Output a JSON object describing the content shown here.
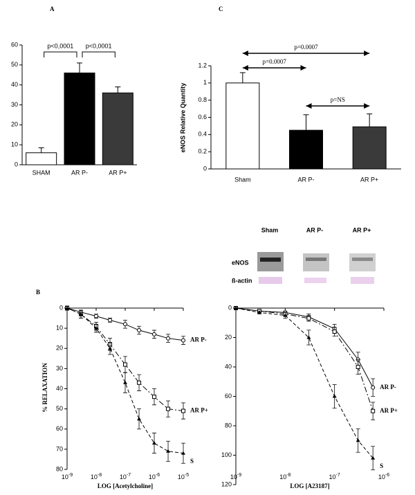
{
  "chart_data": [
    {
      "type": "bar",
      "panel": "A",
      "categories": [
        "SHAM",
        "AR P-",
        "AR P+"
      ],
      "values": [
        6,
        46,
        36
      ],
      "errors": [
        2.5,
        5,
        3
      ],
      "colors": [
        "#ffffff",
        "#000000",
        "#3a3a3a"
      ],
      "ylim": [
        0,
        60
      ],
      "yticks": [
        0,
        10,
        20,
        30,
        40,
        50,
        60
      ],
      "annotations": [
        {
          "text": "p<0,0001"
        },
        {
          "text": "p<0,0001"
        }
      ]
    },
    {
      "type": "bar",
      "panel": "C",
      "ylabel": "eNOS Relative Quantity",
      "categories": [
        "Sham",
        "AR P-",
        "AR P+"
      ],
      "values": [
        1.0,
        0.45,
        0.49
      ],
      "errors": [
        0.12,
        0.18,
        0.15
      ],
      "colors": [
        "#ffffff",
        "#000000",
        "#3a3a3a"
      ],
      "ylim": [
        0,
        1.2
      ],
      "yticks": [
        0,
        0.2,
        0.4,
        0.6,
        0.8,
        1,
        1.2
      ],
      "annotations": [
        {
          "text": "p=0.0007"
        },
        {
          "text": "p=0.0007"
        },
        {
          "text": "p=NS"
        }
      ]
    },
    {
      "type": "line",
      "panel": "B",
      "ylabel": "% RELAXATION",
      "xlabel": "LOG [Acetylcholine]",
      "log_x": true,
      "y_inverted": true,
      "x": [
        1e-09,
        3e-09,
        1e-08,
        3e-08,
        1e-07,
        3e-07,
        1e-06,
        3e-06,
        1e-05
      ],
      "xlim": [
        1e-09,
        1e-05
      ],
      "xticks": [
        {
          "value": 1e-09,
          "label": "10",
          "exponent": "-9"
        },
        {
          "value": 1e-08,
          "label": "10",
          "exponent": "-8"
        },
        {
          "value": 1e-07,
          "label": "10",
          "exponent": "-7"
        },
        {
          "value": 1e-06,
          "label": "10",
          "exponent": "-6"
        },
        {
          "value": 1e-05,
          "label": "10",
          "exponent": "-5"
        }
      ],
      "ylim": [
        0,
        80
      ],
      "yticks": [
        0,
        10,
        20,
        30,
        40,
        50,
        60,
        70,
        80
      ],
      "series": [
        {
          "name": "AR P-",
          "color": "#000000",
          "dash": "solid",
          "marker": "circle",
          "values": [
            0,
            2,
            4,
            6,
            8,
            11,
            13,
            15,
            16
          ],
          "errors": [
            1,
            1,
            1,
            1,
            2,
            2,
            2,
            2,
            2
          ]
        },
        {
          "name": "AR P+",
          "color": "#000000",
          "dash": "dashdot",
          "marker": "square",
          "values": [
            0,
            3,
            9,
            18,
            28,
            37,
            44,
            50,
            51
          ],
          "errors": [
            1,
            2,
            2,
            3,
            4,
            4,
            4,
            4,
            4
          ]
        },
        {
          "name": "S",
          "color": "#000000",
          "dash": "dashed",
          "marker": "triangle",
          "values": [
            0,
            3,
            10,
            20,
            37,
            55,
            67,
            71,
            72
          ],
          "errors": [
            1,
            2,
            2,
            3,
            5,
            5,
            5,
            5,
            5
          ]
        }
      ]
    },
    {
      "type": "line",
      "xlabel": "LOG [A23187]",
      "log_x": true,
      "y_inverted": true,
      "x": [
        1e-09,
        3e-09,
        1e-08,
        3e-08,
        1e-07,
        3e-07,
        6e-07
      ],
      "xlim": [
        1e-09,
        1e-06
      ],
      "xticks": [
        {
          "value": 1e-09,
          "label": "10",
          "exponent": "-9"
        },
        {
          "value": 1e-08,
          "label": "10",
          "exponent": "-8"
        },
        {
          "value": 1e-07,
          "label": "10",
          "exponent": "-7"
        },
        {
          "value": 1e-06,
          "label": "10",
          "exponent": "-6"
        }
      ],
      "ylim": [
        0,
        120
      ],
      "yticks": [
        0,
        20,
        40,
        60,
        80,
        100,
        120
      ],
      "series": [
        {
          "name": "AR P-",
          "color": "#000000",
          "dash": "solid",
          "marker": "circle",
          "values": [
            0,
            2,
            3,
            6,
            14,
            35,
            54
          ],
          "errors": [
            1,
            1,
            1,
            2,
            3,
            5,
            6
          ]
        },
        {
          "name": "AR P+",
          "color": "#000000",
          "dash": "dashdot",
          "marker": "square",
          "values": [
            0,
            2,
            4,
            7,
            16,
            40,
            70
          ],
          "errors": [
            1,
            1,
            1,
            2,
            3,
            5,
            6
          ]
        },
        {
          "name": "S",
          "color": "#000000",
          "dash": "dashed",
          "marker": "triangle",
          "values": [
            0,
            3,
            5,
            20,
            60,
            90,
            102
          ],
          "errors": [
            1,
            1,
            2,
            5,
            8,
            8,
            8
          ]
        }
      ]
    }
  ],
  "blot": {
    "columns": [
      "Sham",
      "AR P-",
      "AR P+"
    ],
    "rows": [
      "eNOS",
      "ß-actin"
    ]
  }
}
